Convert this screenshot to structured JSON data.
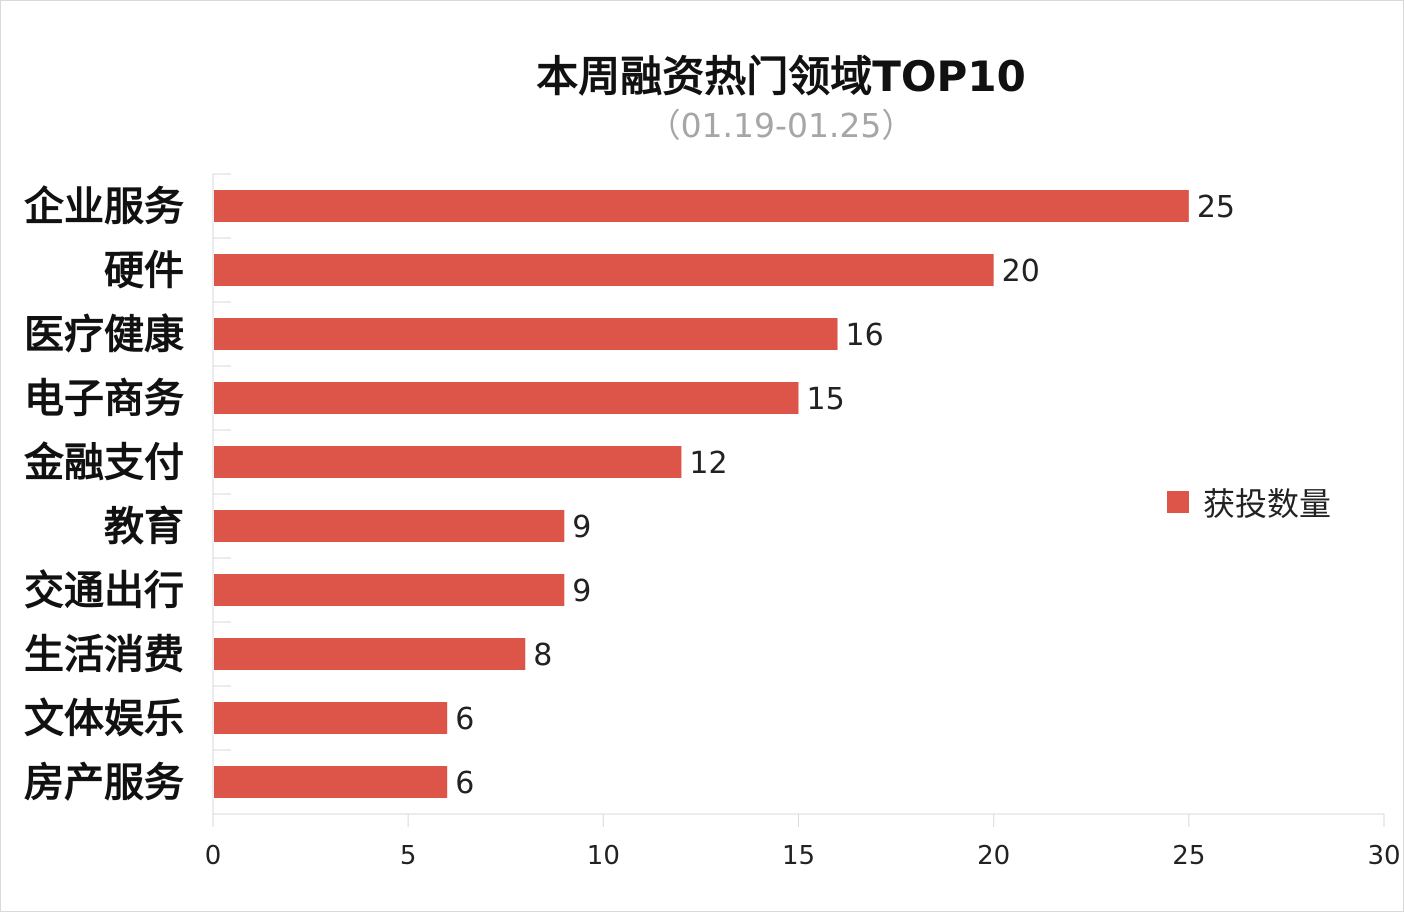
{
  "chart_data": {
    "type": "bar",
    "orientation": "horizontal",
    "title": "本周融资热门领域TOP10",
    "subtitle": "（01.19-01.25）",
    "categories": [
      "企业服务",
      "硬件",
      "医疗健康",
      "电子商务",
      "金融支付",
      "教育",
      "交通出行",
      "生活消费",
      "文体娱乐",
      "房产服务"
    ],
    "series": [
      {
        "name": "获投数量",
        "values": [
          25,
          20,
          16,
          15,
          12,
          9,
          9,
          8,
          6,
          6
        ],
        "color": "#dc5548"
      }
    ],
    "xlim": [
      0,
      30
    ],
    "xticks": [
      0,
      5,
      10,
      15,
      20,
      25,
      30
    ],
    "grid": false,
    "legend_position": "right"
  }
}
